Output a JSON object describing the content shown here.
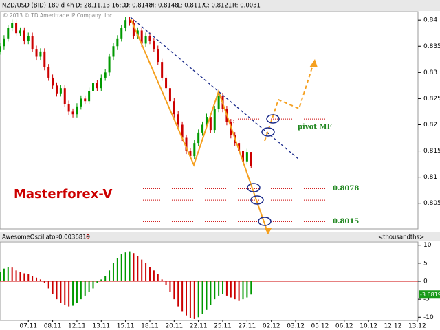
{
  "header": {
    "symbol": "NZD/USD (BID) 180 d 4h",
    "date": "D: 28.11.13 16:00",
    "open": "O: 0.8148",
    "high": "H: 0.8148",
    "low": "L: 0.8117",
    "close": "C: 0.8121",
    "range": "R: 0.0031",
    "copyright": "© 2013 © TD Ameritrade IP Company, Inc."
  },
  "chart_data": [
    {
      "type": "candlestick",
      "annotation": "Masterforex-V",
      "up_color": "#009900",
      "down_color": "#cc0000",
      "xlim": [
        0,
        103.2
      ],
      "ylim": [
        0.8001,
        0.8416
      ],
      "yticks": [
        0.805,
        0.81,
        0.815,
        0.82,
        0.825,
        0.83,
        0.835,
        0.84
      ],
      "open": [
        0.834,
        0.835,
        0.8365,
        0.8385,
        0.8395,
        0.8375,
        0.838,
        0.836,
        0.837,
        0.8345,
        0.833,
        0.834,
        0.831,
        0.829,
        0.8275,
        0.826,
        0.827,
        0.824,
        0.8225,
        0.822,
        0.8235,
        0.825,
        0.8245,
        0.8265,
        0.828,
        0.827,
        0.829,
        0.83,
        0.833,
        0.835,
        0.8365,
        0.8385,
        0.84,
        0.8395,
        0.837,
        0.838,
        0.8355,
        0.837,
        0.836,
        0.8345,
        0.832,
        0.829,
        0.827,
        0.8245,
        0.822,
        0.82,
        0.8175,
        0.815,
        0.814,
        0.8165,
        0.8185,
        0.82,
        0.8215,
        0.819,
        0.823,
        0.8255,
        0.823,
        0.8205,
        0.818,
        0.8165,
        0.815,
        0.813,
        0.8148
      ],
      "high": [
        0.8356,
        0.8371,
        0.8391,
        0.8401,
        0.8401,
        0.8386,
        0.8386,
        0.8376,
        0.8376,
        0.8351,
        0.8346,
        0.8346,
        0.8316,
        0.8296,
        0.8281,
        0.8276,
        0.8276,
        0.8246,
        0.8231,
        0.8241,
        0.8256,
        0.8256,
        0.8271,
        0.8286,
        0.8286,
        0.8296,
        0.8306,
        0.8336,
        0.8356,
        0.8371,
        0.8391,
        0.8406,
        0.8406,
        0.8401,
        0.8386,
        0.8386,
        0.8376,
        0.8376,
        0.8366,
        0.8351,
        0.8326,
        0.8296,
        0.8276,
        0.8251,
        0.8226,
        0.8206,
        0.8181,
        0.8156,
        0.8171,
        0.8191,
        0.8206,
        0.8221,
        0.8221,
        0.8236,
        0.8261,
        0.8261,
        0.8236,
        0.8211,
        0.8186,
        0.8171,
        0.8156,
        0.8154,
        0.8148
      ],
      "low": [
        0.8334,
        0.8344,
        0.8359,
        0.8379,
        0.8369,
        0.8369,
        0.8354,
        0.8354,
        0.8339,
        0.8324,
        0.8324,
        0.8304,
        0.8284,
        0.8269,
        0.8254,
        0.8254,
        0.8234,
        0.8219,
        0.8214,
        0.8214,
        0.8229,
        0.8239,
        0.8239,
        0.8259,
        0.8264,
        0.8264,
        0.8284,
        0.8294,
        0.8324,
        0.8344,
        0.8359,
        0.8379,
        0.8389,
        0.8364,
        0.8364,
        0.8349,
        0.8349,
        0.8354,
        0.8339,
        0.8314,
        0.8284,
        0.8264,
        0.8239,
        0.8214,
        0.8194,
        0.8169,
        0.8144,
        0.8134,
        0.8134,
        0.8159,
        0.8179,
        0.8194,
        0.8184,
        0.8184,
        0.8224,
        0.8224,
        0.8199,
        0.8174,
        0.8159,
        0.8144,
        0.8124,
        0.8124,
        0.8117
      ],
      "close": [
        0.835,
        0.8365,
        0.8385,
        0.8395,
        0.8375,
        0.838,
        0.836,
        0.837,
        0.8345,
        0.833,
        0.834,
        0.831,
        0.829,
        0.8275,
        0.826,
        0.827,
        0.824,
        0.8225,
        0.822,
        0.8235,
        0.825,
        0.8245,
        0.8265,
        0.828,
        0.827,
        0.829,
        0.83,
        0.833,
        0.835,
        0.8365,
        0.8385,
        0.84,
        0.8395,
        0.837,
        0.838,
        0.8355,
        0.837,
        0.836,
        0.8345,
        0.832,
        0.829,
        0.827,
        0.8245,
        0.822,
        0.82,
        0.8175,
        0.815,
        0.814,
        0.8165,
        0.8185,
        0.82,
        0.8215,
        0.819,
        0.823,
        0.8255,
        0.823,
        0.8205,
        0.818,
        0.8165,
        0.815,
        0.813,
        0.8148,
        0.8121
      ],
      "levels": [
        0.8078,
        0.8056,
        0.8015
      ],
      "level_labels": [
        "0.8078",
        null,
        "0.8015"
      ],
      "pivot": {
        "value": 0.8211,
        "label": "pivot MF"
      }
    },
    {
      "type": "bar",
      "title": "AwesomeOscillator",
      "readout": "-0.0036819",
      "zero_label": "0",
      "unit": "<thousandths>",
      "up_color": "#009900",
      "down_color": "#cc0000",
      "xlim": [
        0,
        103.2
      ],
      "ylim": [
        -10.9,
        10.9
      ],
      "yticks": [
        10,
        5,
        0,
        -5,
        -10
      ],
      "xticks": [
        {
          "value": 7,
          "label": "07.11"
        },
        {
          "value": 13,
          "label": "08.11"
        },
        {
          "value": 19,
          "label": "12.11"
        },
        {
          "value": 25,
          "label": "13.11"
        },
        {
          "value": 31,
          "label": "15.11"
        },
        {
          "value": 37,
          "label": "18.11"
        },
        {
          "value": 43,
          "label": "20.11"
        },
        {
          "value": 49,
          "label": "22.11"
        },
        {
          "value": 55,
          "label": "25.11"
        },
        {
          "value": 61,
          "label": "27.11"
        },
        {
          "value": 67,
          "label": "02.12"
        },
        {
          "value": 73,
          "label": "03.12"
        },
        {
          "value": 79,
          "label": "05.12"
        },
        {
          "value": 85,
          "label": "06.12"
        },
        {
          "value": 91,
          "label": "10.12"
        },
        {
          "value": 97,
          "label": "12.12"
        },
        {
          "value": 103,
          "label": "13.12"
        }
      ],
      "values": [
        2.5,
        3.5,
        4,
        3.8,
        3,
        2.5,
        2.2,
        2,
        1.5,
        1,
        0.5,
        -0.5,
        -2,
        -3.5,
        -5,
        -6,
        -6.5,
        -7,
        -6.8,
        -6,
        -5,
        -4,
        -3,
        -2,
        -0.5,
        0.5,
        1.5,
        3,
        5,
        6.5,
        7.5,
        8,
        8.3,
        7.8,
        7,
        6,
        5,
        4,
        3,
        2,
        0.5,
        -1,
        -3,
        -5,
        -7,
        -8.5,
        -9.5,
        -10.2,
        -10.5,
        -10,
        -9,
        -8,
        -6.5,
        -5,
        -4,
        -3.5,
        -4,
        -4.5,
        -5,
        -5.5,
        -5,
        -4.5,
        -3.6819
      ]
    }
  ]
}
